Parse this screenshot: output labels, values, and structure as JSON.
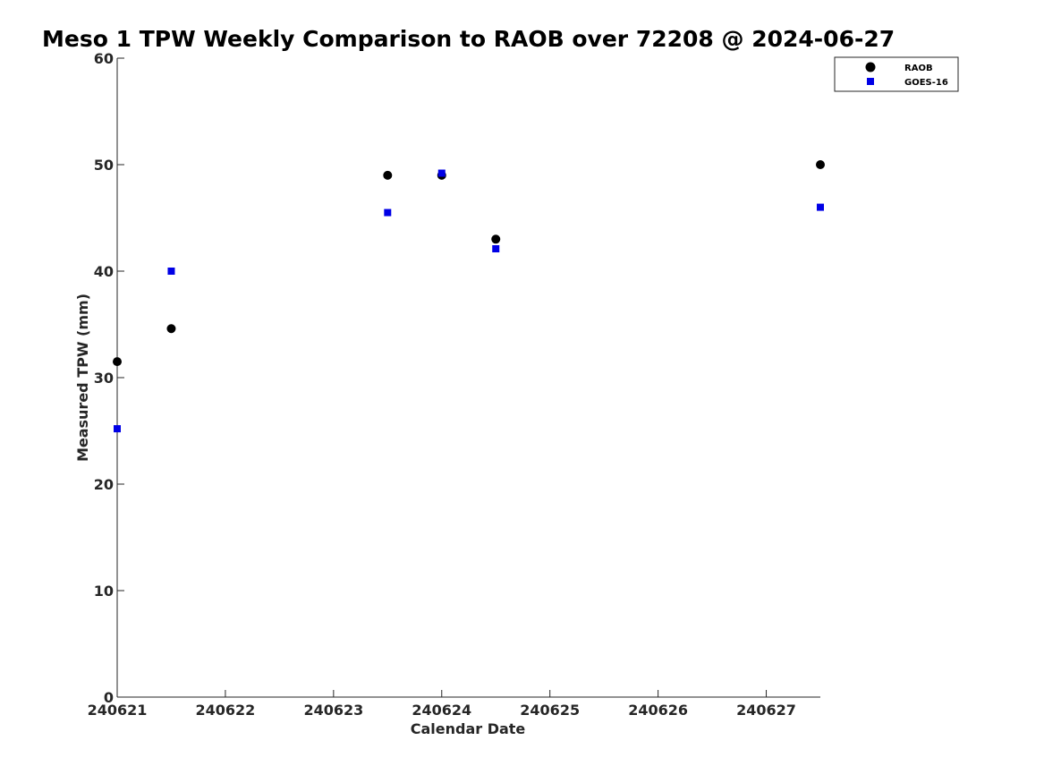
{
  "chart_data": {
    "type": "scatter",
    "title": "Meso 1 TPW Weekly Comparison to RAOB over 72208 @ 2024-06-27",
    "xlabel": "Calendar Date",
    "ylabel": "Measured TPW (mm)",
    "x_ticks": [
      "240621",
      "240622",
      "240623",
      "240624",
      "240625",
      "240626",
      "240627"
    ],
    "xlim": [
      "240621 00Z",
      "240627 12Z"
    ],
    "ylim": [
      0,
      60
    ],
    "y_ticks": [
      0,
      10,
      20,
      30,
      40,
      50,
      60
    ],
    "grid": false,
    "legend_position": "top-right",
    "series": [
      {
        "name": "RAOB",
        "marker": "circle",
        "color": "#000000",
        "x": [
          "240621 00Z",
          "240621 12Z",
          "240623 12Z",
          "240624 00Z",
          "240624 12Z",
          "240627 12Z"
        ],
        "y": [
          31.5,
          34.6,
          49.0,
          49.0,
          43.0,
          50.0
        ]
      },
      {
        "name": "GOES-16",
        "marker": "square",
        "color": "#0000e6",
        "x": [
          "240621 00Z",
          "240621 12Z",
          "240623 12Z",
          "240624 00Z",
          "240624 12Z",
          "240627 12Z"
        ],
        "y": [
          25.2,
          40.0,
          45.5,
          49.2,
          42.1,
          46.0
        ]
      }
    ]
  }
}
